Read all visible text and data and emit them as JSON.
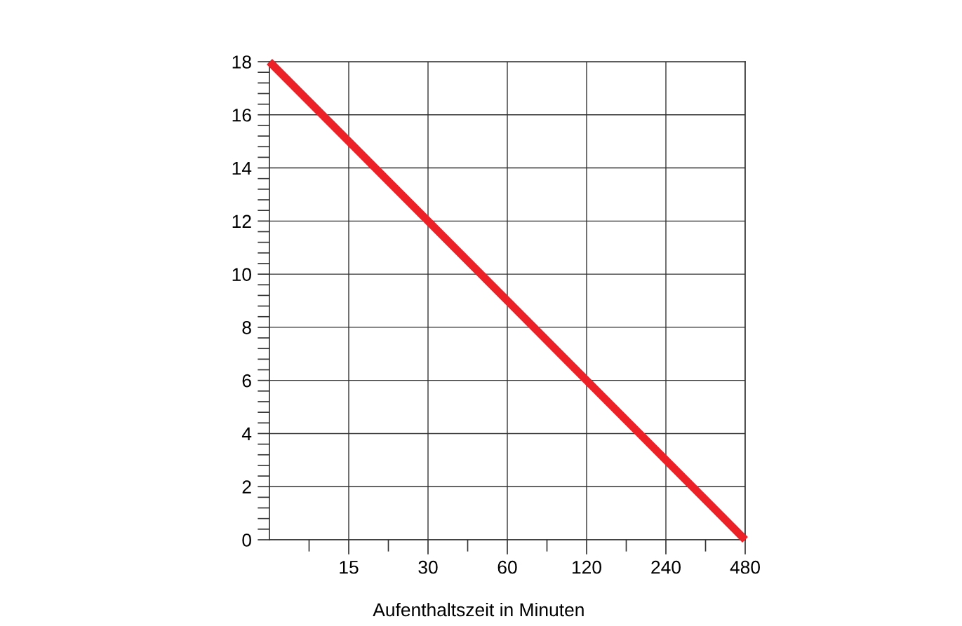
{
  "chart_data": {
    "type": "line",
    "xlabel": "Aufenthaltszeit in Minuten",
    "log": "x",
    "x": [
      7.5,
      480
    ],
    "series": [
      {
        "color": "#ec2027",
        "values": [
          18,
          0
        ]
      }
    ],
    "xlim": [
      7.5,
      480
    ],
    "xticks": [
      15,
      30,
      60,
      120,
      240,
      480
    ],
    "ylim": [
      0,
      18
    ],
    "yticks": [
      0,
      2,
      4,
      6,
      8,
      10,
      12,
      14,
      16,
      18
    ],
    "grid": true,
    "line_style": "solid",
    "marker": "none",
    "legend": false
  }
}
